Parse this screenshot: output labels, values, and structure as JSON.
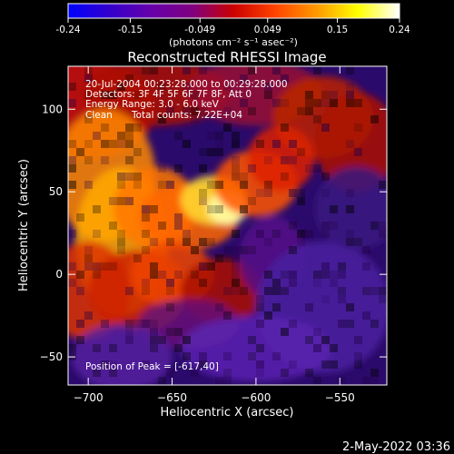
{
  "chart_data": {
    "type": "heatmap",
    "title": "Reconstructed RHESSI Image",
    "xlabel": "Heliocentric X (arcsec)",
    "ylabel": "Heliocentric Y (arcsec)",
    "xlim": [
      -712,
      -522
    ],
    "ylim": [
      -67,
      126
    ],
    "x_ticks": [
      -700,
      -650,
      -600,
      -550
    ],
    "y_ticks": [
      -50,
      0,
      50,
      100
    ],
    "colorbar": {
      "ticks": [
        "-0.24",
        "-0.15",
        "-0.049",
        "0.049",
        "0.15",
        "0.24"
      ],
      "range": [
        -0.24,
        0.24
      ],
      "unit_label": "(photons cm⁻² s⁻¹ asec⁻²)",
      "colormap": [
        "#0000ff",
        "#3300cc",
        "#6600aa",
        "#800080",
        "#cc0000",
        "#ff4400",
        "#ff9900",
        "#ffff00",
        "#ffffff"
      ]
    },
    "annotations": [
      "20-Jul-2004 00:23:28.000 to 00:29:28.000",
      "Detectors: 3F 4F 5F 6F 7F 8F, Att 0",
      "Energy Range: 3.0 - 6.0 keV",
      "Clean",
      "Total counts: 7.22E+04"
    ],
    "peak_label": "Position of Peak = [-617,40]",
    "peak": [
      -617,
      40
    ],
    "grid": false
  },
  "footer": {
    "timestamp": "2-May-2022 03:36"
  }
}
